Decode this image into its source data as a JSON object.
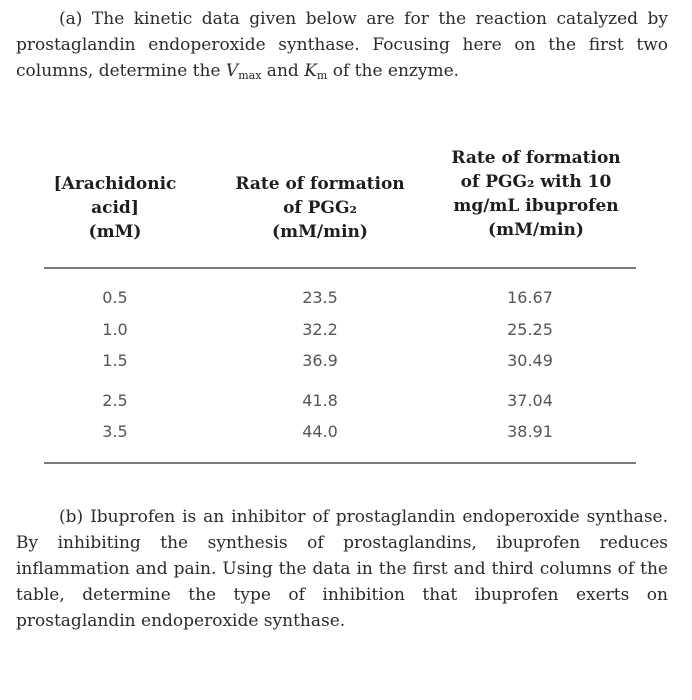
{
  "part_a": {
    "label": "(a)",
    "t1": "The kinetic data given below are for the reaction catalyzed by prostaglandin endoperoxide synthase. Focusing here on the first two columns, determine the ",
    "vmax_v": "V",
    "vmax_sub": "max",
    "t2": " and ",
    "km_k": "K",
    "km_sub": "m",
    "t3": " of the enzyme."
  },
  "table": {
    "headers": {
      "col1": [
        "[Arachidonic",
        "acid]",
        "(mM)"
      ],
      "col2": [
        "Rate of formation",
        "of PGG₂",
        "(mM/min)"
      ],
      "col3": [
        "Rate of formation",
        "of PGG₂ with 10",
        "mg/mL ibuprofen",
        "(mM/min)"
      ]
    },
    "rows": [
      [
        "0.5",
        "23.5",
        "16.67"
      ],
      [
        "1.0",
        "32.2",
        "25.25"
      ],
      [
        "1.5",
        "36.9",
        "30.49"
      ],
      [
        "2.5",
        "41.8",
        "37.04"
      ],
      [
        "3.5",
        "44.0",
        "38.91"
      ]
    ]
  },
  "part_b": {
    "label": "(b)",
    "text": "Ibuprofen is an inhibitor of prostaglandin endoperoxide synthase. By inhibiting the synthesis of prostaglandins, ibuprofen reduces inflammation and pain. Using the data in the first and third columns of the table, determine the type of inhibition that ibuprofen exerts on prostaglandin endoperoxide synthase."
  }
}
